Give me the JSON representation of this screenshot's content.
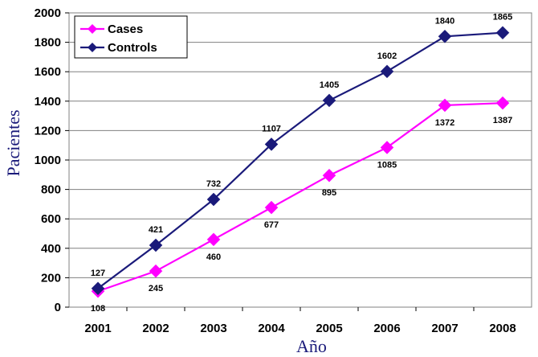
{
  "chart_data": {
    "type": "line",
    "x": [
      "2001",
      "2002",
      "2003",
      "2004",
      "2005",
      "2006",
      "2007",
      "2008"
    ],
    "series": [
      {
        "name": "Cases",
        "color": "#ff00ff",
        "values": [
          108,
          245,
          460,
          677,
          895,
          1085,
          1372,
          1387
        ]
      },
      {
        "name": "Controls",
        "color": "#1a1a7a",
        "values": [
          127,
          421,
          732,
          1107,
          1405,
          1602,
          1840,
          1865
        ]
      }
    ],
    "xlabel": "Año",
    "ylabel": "Pacientes",
    "ylim": [
      0,
      2000
    ],
    "yticks": [
      0,
      200,
      400,
      600,
      800,
      1000,
      1200,
      1400,
      1600,
      1800,
      2000
    ],
    "grid": true,
    "legend": "top-left",
    "marker": "diamond"
  }
}
